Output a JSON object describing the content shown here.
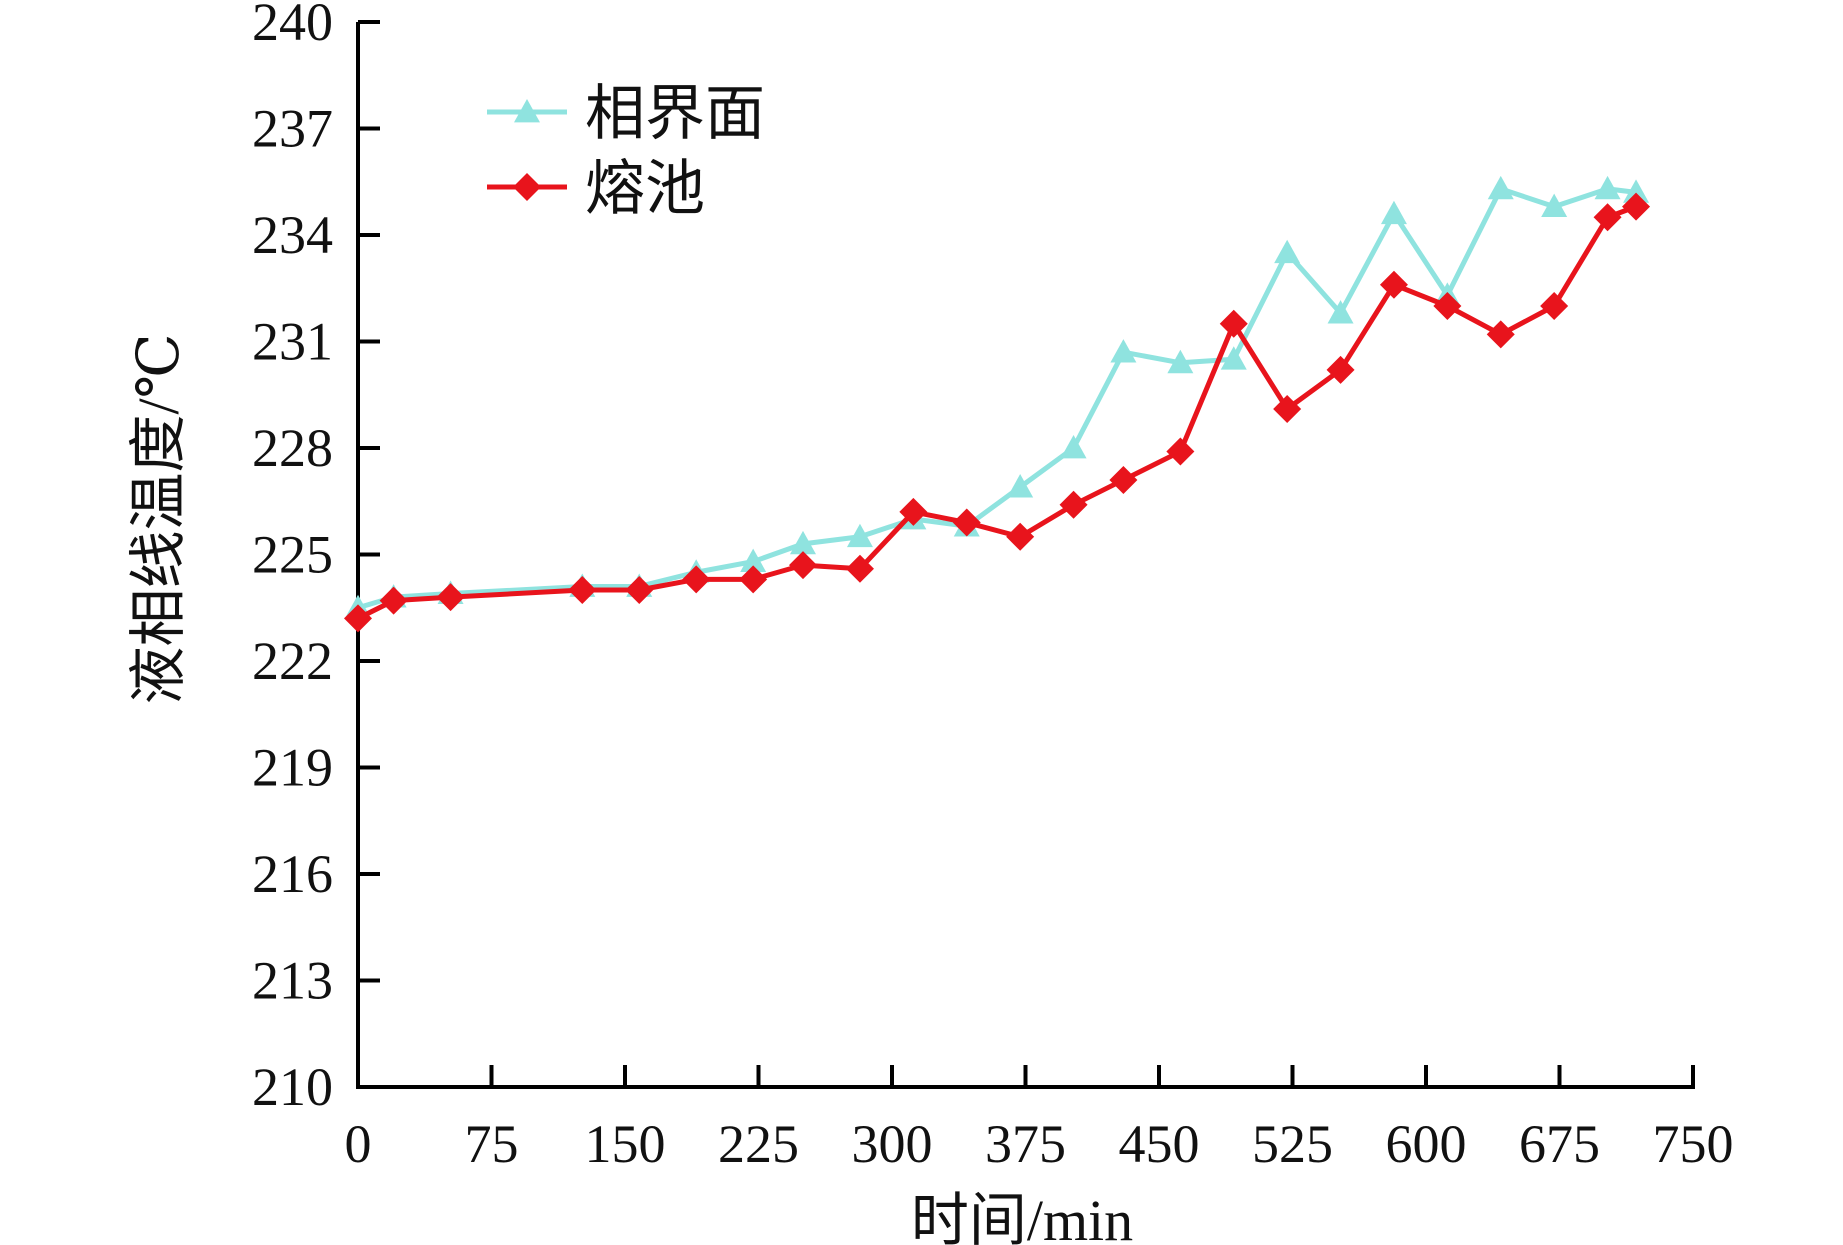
{
  "chart_data": {
    "type": "line",
    "title": "",
    "xlabel": "时间/min",
    "ylabel": "液相线温度/℃",
    "xlim": [
      0,
      750
    ],
    "ylim": [
      210,
      240
    ],
    "xticks": [
      0,
      75,
      150,
      225,
      300,
      375,
      450,
      525,
      600,
      675,
      750
    ],
    "yticks": [
      210,
      213,
      216,
      219,
      222,
      225,
      228,
      231,
      234,
      237,
      240
    ],
    "xtick_labels": [
      "0",
      "75",
      "150",
      "225",
      "300",
      "375",
      "450",
      "525",
      "600",
      "675",
      "750"
    ],
    "ytick_labels": [
      "210",
      "213",
      "216",
      "219",
      "222",
      "225",
      "228",
      "231",
      "234",
      "237",
      "240"
    ],
    "grid": false,
    "legend_position": "top-left",
    "series": [
      {
        "name": "相界面",
        "color": "#8fe3df",
        "marker": "triangle",
        "x": [
          0,
          20,
          52,
          126,
          158,
          190,
          222,
          250,
          282,
          312,
          342,
          372,
          402,
          430,
          462,
          492,
          522,
          552,
          582,
          612,
          642,
          672,
          702,
          718
        ],
        "y": [
          223.5,
          223.8,
          223.9,
          224.1,
          224.1,
          224.5,
          224.8,
          225.3,
          225.5,
          226.0,
          225.8,
          226.9,
          228.0,
          230.7,
          230.4,
          230.5,
          233.5,
          231.8,
          234.6,
          232.3,
          235.3,
          234.8,
          235.3,
          235.2
        ]
      },
      {
        "name": "熔池",
        "color": "#e8141c",
        "marker": "diamond",
        "x": [
          0,
          20,
          52,
          126,
          158,
          190,
          222,
          250,
          282,
          312,
          342,
          372,
          402,
          430,
          462,
          492,
          522,
          552,
          582,
          612,
          642,
          672,
          702,
          718
        ],
        "y": [
          223.2,
          223.7,
          223.8,
          224.0,
          224.0,
          224.3,
          224.3,
          224.7,
          224.6,
          226.2,
          225.9,
          225.5,
          226.4,
          227.1,
          227.9,
          231.5,
          229.1,
          230.2,
          232.6,
          232.0,
          231.2,
          232.0,
          234.5,
          234.8
        ]
      }
    ]
  }
}
